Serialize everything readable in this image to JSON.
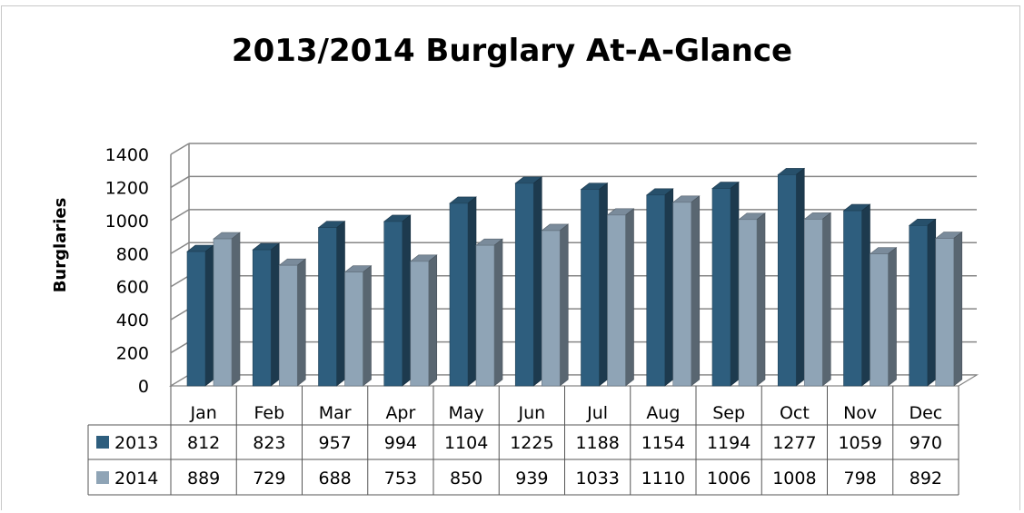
{
  "chart_data": {
    "type": "bar",
    "title": "2013/2014 Burglary At-A-Glance",
    "xlabel": "",
    "ylabel": "Burglaries",
    "ylim": [
      0,
      1400
    ],
    "yticks": [
      0,
      200,
      400,
      600,
      800,
      1000,
      1200,
      1400
    ],
    "grid": true,
    "legend": "data-table",
    "categories": [
      "Jan",
      "Feb",
      "Mar",
      "Apr",
      "May",
      "Jun",
      "Jul",
      "Aug",
      "Sep",
      "Oct",
      "Nov",
      "Dec"
    ],
    "series": [
      {
        "name": "2013",
        "color": "#2e5e7e",
        "values": [
          812,
          823,
          957,
          994,
          1104,
          1225,
          1188,
          1154,
          1194,
          1277,
          1059,
          970
        ]
      },
      {
        "name": "2014",
        "color": "#8fa4b6",
        "values": [
          889,
          729,
          688,
          753,
          850,
          939,
          1033,
          1110,
          1006,
          1008,
          798,
          892
        ]
      }
    ]
  }
}
